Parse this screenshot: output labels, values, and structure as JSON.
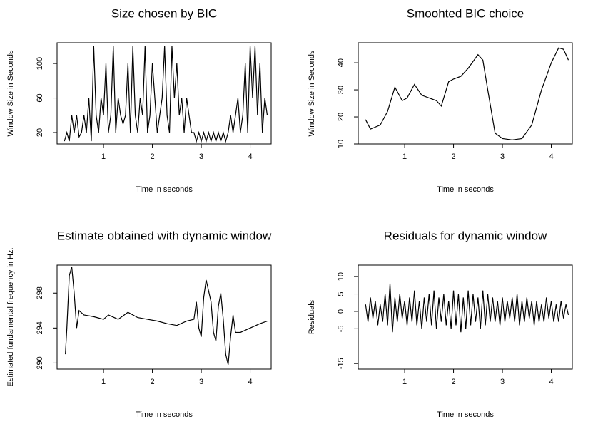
{
  "chart_data": [
    {
      "type": "line",
      "title": "Size chosen by BIC",
      "xlabel": "Time in seconds",
      "ylabel": "Window Size in Seconds",
      "color": "#000000",
      "x": [
        0.2,
        0.25,
        0.3,
        0.35,
        0.4,
        0.45,
        0.5,
        0.55,
        0.6,
        0.65,
        0.7,
        0.75,
        0.8,
        0.85,
        0.9,
        0.95,
        1.0,
        1.05,
        1.1,
        1.15,
        1.2,
        1.25,
        1.3,
        1.35,
        1.4,
        1.45,
        1.5,
        1.55,
        1.6,
        1.65,
        1.7,
        1.75,
        1.8,
        1.85,
        1.9,
        1.95,
        2.0,
        2.05,
        2.1,
        2.15,
        2.2,
        2.25,
        2.3,
        2.35,
        2.4,
        2.45,
        2.5,
        2.55,
        2.6,
        2.65,
        2.7,
        2.75,
        2.8,
        2.85,
        2.9,
        2.95,
        3.0,
        3.05,
        3.1,
        3.15,
        3.2,
        3.25,
        3.3,
        3.35,
        3.4,
        3.45,
        3.5,
        3.55,
        3.6,
        3.65,
        3.7,
        3.75,
        3.8,
        3.85,
        3.9,
        3.95,
        4.0,
        4.05,
        4.1,
        4.15,
        4.2,
        4.25,
        4.3,
        4.35
      ],
      "values": [
        10,
        20,
        10,
        40,
        20,
        40,
        15,
        20,
        40,
        20,
        60,
        10,
        120,
        40,
        20,
        60,
        40,
        100,
        20,
        40,
        120,
        20,
        60,
        40,
        30,
        40,
        100,
        20,
        120,
        40,
        20,
        60,
        40,
        120,
        20,
        40,
        100,
        60,
        20,
        40,
        60,
        120,
        40,
        20,
        120,
        60,
        100,
        40,
        60,
        20,
        60,
        40,
        20,
        20,
        10,
        20,
        10,
        20,
        10,
        20,
        10,
        20,
        10,
        20,
        10,
        20,
        10,
        20,
        40,
        20,
        40,
        60,
        20,
        40,
        100,
        20,
        120,
        60,
        120,
        40,
        100,
        20,
        60,
        40
      ],
      "xlim": [
        0.05,
        4.43
      ],
      "ylim": [
        6.8,
        124
      ],
      "xticks": [
        1,
        2,
        3,
        4
      ],
      "yticks": [
        20,
        60,
        100
      ]
    },
    {
      "type": "line",
      "title": "Smoohted BIC choice",
      "xlabel": "Time in seconds",
      "ylabel": "Window Size in Seconds",
      "color": "#000000",
      "x": [
        0.2,
        0.3,
        0.5,
        0.65,
        0.8,
        0.95,
        1.05,
        1.2,
        1.35,
        1.5,
        1.65,
        1.75,
        1.9,
        2.0,
        2.15,
        2.3,
        2.5,
        2.6,
        2.7,
        2.85,
        3.0,
        3.2,
        3.4,
        3.6,
        3.8,
        4.0,
        4.15,
        4.25,
        4.35
      ],
      "values": [
        19,
        15.5,
        17,
        22,
        31,
        26,
        27,
        32,
        28,
        27,
        26,
        24,
        33,
        34,
        35,
        38,
        43,
        41,
        30,
        14,
        12,
        11.5,
        12,
        17,
        30,
        40,
        45.5,
        45,
        41
      ],
      "xlim": [
        0.05,
        4.43
      ],
      "ylim": [
        10,
        47.4
      ],
      "xticks": [
        1,
        2,
        3,
        4
      ],
      "yticks": [
        10,
        20,
        30,
        40
      ]
    },
    {
      "type": "line",
      "title": "Estimate obtained with dynamic window",
      "xlabel": "Time in seconds",
      "ylabel": "Estimated fundamental frequency in Hz.",
      "color": "#000000",
      "x": [
        0.22,
        0.25,
        0.3,
        0.35,
        0.4,
        0.45,
        0.5,
        0.6,
        0.8,
        1.0,
        1.1,
        1.3,
        1.5,
        1.7,
        1.9,
        2.1,
        2.3,
        2.5,
        2.7,
        2.85,
        2.9,
        2.95,
        3.0,
        3.05,
        3.1,
        3.2,
        3.25,
        3.3,
        3.35,
        3.4,
        3.45,
        3.5,
        3.55,
        3.6,
        3.65,
        3.7,
        3.8,
        4.0,
        4.2,
        4.35
      ],
      "values": [
        291,
        294,
        300,
        301,
        298,
        294,
        296,
        295.5,
        295.3,
        295,
        295.5,
        295,
        295.8,
        295.2,
        295,
        294.8,
        294.5,
        294.3,
        294.8,
        295,
        297,
        294,
        293,
        297.5,
        299.5,
        297,
        293.5,
        292.5,
        296.5,
        298,
        295,
        291,
        289.8,
        293,
        295.5,
        293.5,
        293.5,
        294,
        294.5,
        294.8
      ],
      "xlim": [
        0.05,
        4.43
      ],
      "ylim": [
        289.3,
        301.2
      ],
      "xticks": [
        1,
        2,
        3,
        4
      ],
      "yticks": [
        290,
        294,
        298
      ]
    },
    {
      "type": "line",
      "title": "Residuals for dynamic window",
      "xlabel": "Time in seconds",
      "ylabel": "Residuals",
      "color": "#000000",
      "x": [
        0.2,
        0.25,
        0.3,
        0.35,
        0.4,
        0.45,
        0.5,
        0.55,
        0.6,
        0.65,
        0.7,
        0.75,
        0.8,
        0.85,
        0.9,
        0.95,
        1.0,
        1.05,
        1.1,
        1.15,
        1.2,
        1.25,
        1.3,
        1.35,
        1.4,
        1.45,
        1.5,
        1.55,
        1.6,
        1.65,
        1.7,
        1.75,
        1.8,
        1.85,
        1.9,
        1.95,
        2.0,
        2.05,
        2.1,
        2.15,
        2.2,
        2.25,
        2.3,
        2.35,
        2.4,
        2.45,
        2.5,
        2.55,
        2.6,
        2.65,
        2.7,
        2.75,
        2.8,
        2.85,
        2.9,
        2.95,
        3.0,
        3.05,
        3.1,
        3.15,
        3.2,
        3.25,
        3.3,
        3.35,
        3.4,
        3.45,
        3.5,
        3.55,
        3.6,
        3.65,
        3.7,
        3.75,
        3.8,
        3.85,
        3.9,
        3.95,
        4.0,
        4.05,
        4.1,
        4.15,
        4.2,
        4.25,
        4.3,
        4.35
      ],
      "values": [
        2,
        -3,
        4,
        -2,
        3,
        -4,
        2,
        -3,
        5,
        -4,
        8,
        -6,
        4,
        -3,
        5,
        -2,
        3,
        -4,
        4,
        -3,
        6,
        -4,
        3,
        -5,
        4,
        -3,
        5,
        -4,
        6,
        -5,
        4,
        -3,
        5,
        -4,
        3,
        -5,
        6,
        -4,
        5,
        -6,
        4,
        -5,
        6,
        -4,
        5,
        -3,
        4,
        -5,
        6,
        -4,
        5,
        -3,
        4,
        -3,
        3,
        -4,
        4,
        -3,
        3,
        -2,
        4,
        -3,
        5,
        -4,
        3,
        -3,
        4,
        -2,
        3,
        -4,
        3,
        -3,
        2,
        -3,
        4,
        -2,
        3,
        -3,
        2,
        -3,
        3,
        -2,
        2,
        -1
      ],
      "xlim": [
        0.05,
        4.43
      ],
      "ylim": [
        -16.6,
        13.3
      ],
      "xticks": [
        1,
        2,
        3,
        4
      ],
      "yticks": [
        -15,
        -5,
        0,
        5,
        10
      ]
    }
  ]
}
